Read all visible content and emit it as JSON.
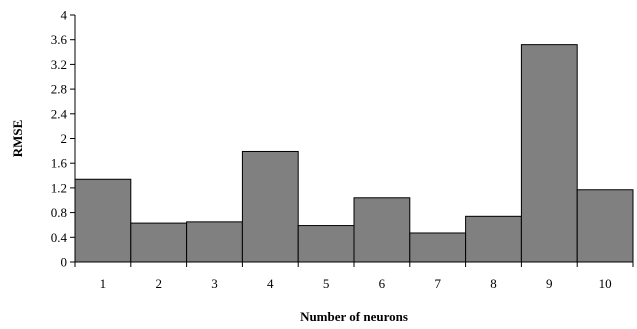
{
  "chart_data": {
    "type": "bar",
    "title": "",
    "xlabel": "Number of neurons",
    "ylabel": "RMSE",
    "categories": [
      "1",
      "2",
      "3",
      "4",
      "5",
      "6",
      "7",
      "8",
      "9",
      "10"
    ],
    "values": [
      1.34,
      0.63,
      0.65,
      1.79,
      0.59,
      1.04,
      0.47,
      0.74,
      3.52,
      1.17
    ],
    "ylim": [
      0,
      4
    ],
    "yticks": [
      "0",
      "0.4",
      "0.8",
      "1.2",
      "1.6",
      "2",
      "2.4",
      "2.8",
      "3.2",
      "3.6",
      "4"
    ],
    "grid": false,
    "legend": "none",
    "bar_color": "#808080",
    "bar_edge_color": "#000000"
  }
}
